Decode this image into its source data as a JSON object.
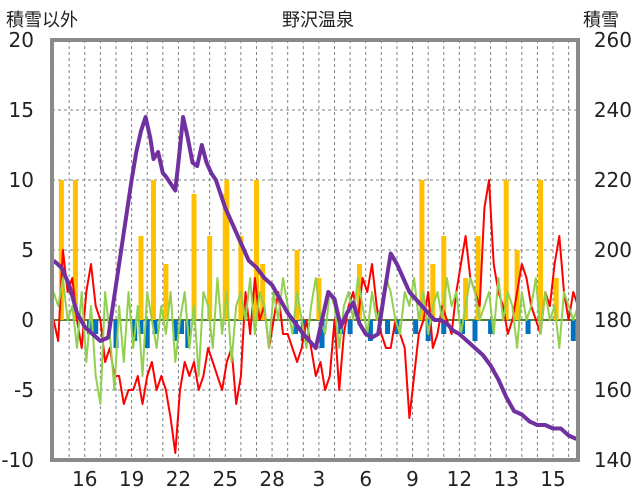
{
  "chart_data": {
    "type": "line",
    "title": "野沢温泉",
    "left_axis_label": "積雪以外",
    "right_axis_label": "積雪",
    "left_ylim": [
      -10,
      20
    ],
    "right_ylim": [
      140,
      260
    ],
    "left_ticks": [
      "20",
      "15",
      "10",
      "5",
      "0",
      "-5",
      "-10"
    ],
    "right_ticks": [
      "260",
      "240",
      "220",
      "200",
      "180",
      "160",
      "140"
    ],
    "x_range": [
      13.9,
      47.6
    ],
    "x_tick_labels": [
      {
        "x": 16,
        "label": "16"
      },
      {
        "x": 19,
        "label": "19"
      },
      {
        "x": 22,
        "label": "22"
      },
      {
        "x": 25,
        "label": "25"
      },
      {
        "x": 28,
        "label": "28"
      },
      {
        "x": 31,
        "label": "3"
      },
      {
        "x": 34,
        "label": "6"
      },
      {
        "x": 37,
        "label": "9"
      },
      {
        "x": 40,
        "label": "12"
      },
      {
        "x": 43,
        "label": "13"
      },
      {
        "x": 46,
        "label": "15"
      }
    ],
    "x_tick_labels_note": "",
    "grid": true,
    "colors": {
      "snow_depth": "#7030a0",
      "temperature": "#ff0000",
      "humidity_like": "#92d050",
      "snowfall": "#ffc000",
      "negative_bars": "#0070c0",
      "zero_line": "#548235"
    },
    "series": [
      {
        "key": "snow_depth",
        "axis": "right",
        "x": [
          14.0,
          14.5,
          15.0,
          15.5,
          16.0,
          16.5,
          17.0,
          17.5,
          18.0,
          18.5,
          19.0,
          19.3,
          19.6,
          19.9,
          20.2,
          20.4,
          20.7,
          21.0,
          21.2,
          21.5,
          21.8,
          22.0,
          22.3,
          22.6,
          22.9,
          23.2,
          23.5,
          23.8,
          24.1,
          24.4,
          24.7,
          25.0,
          25.5,
          26.0,
          26.5,
          27.0,
          27.5,
          28.0,
          28.5,
          29.0,
          29.5,
          30.0,
          30.4,
          30.8,
          31.2,
          31.6,
          32.0,
          32.4,
          32.8,
          33.2,
          33.6,
          34.0,
          34.4,
          34.8,
          35.2,
          35.6,
          36.0,
          36.4,
          36.8,
          37.2,
          37.6,
          38.0,
          38.4,
          38.8,
          39.2,
          39.6,
          40.0,
          40.5,
          41.0,
          41.5,
          42.0,
          42.5,
          43.0,
          43.5,
          44.0,
          44.5,
          45.0,
          45.5,
          46.0,
          46.5,
          47.0,
          47.5
        ],
        "values": [
          197,
          195,
          190,
          182,
          178,
          176,
          174,
          175,
          190,
          205,
          220,
          228,
          234,
          238,
          232,
          226,
          228,
          222,
          221,
          219,
          217,
          225,
          238,
          232,
          225,
          224,
          230,
          225,
          222,
          220,
          216,
          212,
          207,
          202,
          197,
          195,
          192,
          190,
          186,
          182,
          179,
          176,
          174,
          172,
          180,
          188,
          186,
          178,
          182,
          185,
          179,
          176,
          175,
          176,
          188,
          199,
          196,
          192,
          188,
          186,
          184,
          182,
          180,
          180,
          179,
          177,
          176,
          174,
          172,
          170,
          167,
          163,
          158,
          154,
          153,
          151,
          150,
          150,
          149,
          149,
          147,
          146
        ]
      },
      {
        "key": "temperature",
        "axis": "left",
        "x": [
          14.0,
          14.3,
          14.6,
          14.9,
          15.2,
          15.5,
          15.8,
          16.1,
          16.4,
          16.7,
          17.0,
          17.3,
          17.6,
          17.9,
          18.2,
          18.5,
          18.8,
          19.1,
          19.4,
          19.7,
          20.0,
          20.3,
          20.6,
          20.9,
          21.2,
          21.5,
          21.8,
          22.1,
          22.4,
          22.7,
          23.0,
          23.3,
          23.6,
          23.9,
          24.2,
          24.5,
          24.8,
          25.1,
          25.4,
          25.7,
          26.0,
          26.3,
          26.6,
          26.9,
          27.2,
          27.5,
          27.8,
          28.1,
          28.4,
          28.7,
          29.0,
          29.3,
          29.6,
          29.9,
          30.2,
          30.5,
          30.8,
          31.1,
          31.4,
          31.7,
          32.0,
          32.3,
          32.6,
          32.9,
          33.2,
          33.5,
          33.8,
          34.1,
          34.4,
          34.7,
          35.0,
          35.3,
          35.6,
          35.9,
          36.2,
          36.5,
          36.8,
          37.1,
          37.4,
          37.7,
          38.0,
          38.3,
          38.6,
          38.9,
          39.2,
          39.5,
          39.8,
          40.1,
          40.4,
          40.7,
          41.0,
          41.3,
          41.6,
          41.9,
          42.2,
          42.5,
          42.8,
          43.1,
          43.4,
          43.7,
          44.0,
          44.3,
          44.6,
          44.9,
          45.2,
          45.5,
          45.8,
          46.1,
          46.4,
          46.7,
          47.0,
          47.3,
          47.6
        ],
        "values": [
          0,
          -1.5,
          5,
          2,
          3,
          0,
          -2,
          2,
          4,
          1,
          0,
          -3,
          -2,
          -4,
          -4,
          -6,
          -5,
          -5,
          -4,
          -6,
          -4,
          -3,
          -5,
          -4,
          -5,
          -7,
          -9.5,
          -5,
          -3,
          -4,
          -3,
          -5,
          -4,
          -2,
          -3,
          -4,
          -5,
          -3,
          -2,
          -6,
          -4,
          2,
          -1,
          3,
          0,
          1,
          -2,
          0,
          2,
          -1,
          -1,
          -2,
          -3,
          -2,
          0,
          -2,
          -4,
          -3,
          -5,
          -4,
          0,
          -5,
          -1,
          1,
          2,
          0,
          3,
          2,
          4,
          1,
          -1,
          -2,
          -2,
          0,
          -1,
          -2,
          -7,
          -4,
          -1,
          0,
          2,
          -2,
          -1,
          1,
          0,
          -1,
          2,
          4,
          6,
          3,
          2,
          1,
          8,
          10,
          4,
          2,
          1,
          -1,
          0,
          2,
          4,
          3,
          1,
          0,
          -1,
          2,
          1,
          4,
          6,
          2,
          0,
          2,
          1
        ]
      },
      {
        "key": "humidity_like",
        "axis": "left",
        "x": [
          14.0,
          14.3,
          14.6,
          14.9,
          15.2,
          15.5,
          15.8,
          16.1,
          16.4,
          16.7,
          17.0,
          17.3,
          17.6,
          17.9,
          18.2,
          18.5,
          18.8,
          19.1,
          19.4,
          19.7,
          20.0,
          20.3,
          20.6,
          20.9,
          21.2,
          21.5,
          21.8,
          22.1,
          22.4,
          22.7,
          23.0,
          23.3,
          23.6,
          23.9,
          24.2,
          24.5,
          24.8,
          25.1,
          25.4,
          25.7,
          26.0,
          26.3,
          26.6,
          26.9,
          27.2,
          27.5,
          27.8,
          28.1,
          28.4,
          28.7,
          29.0,
          29.3,
          29.6,
          29.9,
          30.2,
          30.5,
          30.8,
          31.1,
          31.4,
          31.7,
          32.0,
          32.3,
          32.6,
          32.9,
          33.2,
          33.5,
          33.8,
          34.1,
          34.4,
          34.7,
          35.0,
          35.3,
          35.6,
          35.9,
          36.2,
          36.5,
          36.8,
          37.1,
          37.4,
          37.7,
          38.0,
          38.3,
          38.6,
          38.9,
          39.2,
          39.5,
          39.8,
          40.1,
          40.4,
          40.7,
          41.0,
          41.3,
          41.6,
          41.9,
          42.2,
          42.5,
          42.8,
          43.1,
          43.4,
          43.7,
          44.0,
          44.3,
          44.6,
          44.9,
          45.2,
          45.5,
          45.8,
          46.1,
          46.4,
          46.7,
          47.0,
          47.3,
          47.6
        ],
        "values": [
          2,
          1,
          3,
          0,
          1,
          -2,
          2,
          -3,
          1,
          -4,
          -6,
          2,
          -1,
          -5,
          1,
          -3,
          2,
          -2,
          1,
          -4,
          2,
          0,
          -2,
          1,
          -1,
          2,
          -3,
          0,
          2,
          -2,
          1,
          -4,
          2,
          1,
          -2,
          3,
          -1,
          2,
          -3,
          1,
          2,
          0,
          3,
          -1,
          2,
          1,
          -2,
          2,
          0,
          3,
          1,
          -1,
          2,
          0,
          -2,
          1,
          3,
          0,
          -1,
          2,
          1,
          -2,
          1,
          2,
          0,
          3,
          1,
          -1,
          2,
          0,
          1,
          3,
          2,
          0,
          -1,
          2,
          1,
          3,
          0,
          2,
          -1,
          1,
          2,
          0,
          3,
          1,
          2,
          -1,
          1,
          3,
          2,
          0,
          1,
          2,
          -1,
          3,
          0,
          2,
          1,
          -2,
          2,
          0,
          1,
          3,
          -1,
          2,
          0,
          1,
          -2,
          2,
          1,
          0,
          1
        ]
      },
      {
        "key": "snowfall",
        "axis": "left",
        "type": "bar",
        "x": [
          14.5,
          15.4,
          19.6,
          20.4,
          21.2,
          23.0,
          24.0,
          25.0,
          25.1,
          26.0,
          27.0,
          27.4,
          29.6,
          31.0,
          33.6,
          37.6,
          38.3,
          39.0,
          40.4,
          41.2,
          43.0,
          43.7,
          45.2,
          46.2
        ],
        "values": [
          10,
          10,
          6,
          10,
          4,
          9,
          6,
          9,
          10,
          6,
          10,
          4,
          5,
          3,
          4,
          10,
          4,
          6,
          3,
          6,
          10,
          5,
          10,
          3
        ]
      },
      {
        "key": "negative_bars",
        "axis": "left",
        "type": "bar",
        "x": [
          16.3,
          16.7,
          18.0,
          19.2,
          19.6,
          20.0,
          20.5,
          21.8,
          22.2,
          22.6,
          29.5,
          30.0,
          31.2,
          32.4,
          33.0,
          34.3,
          35.4,
          36.0,
          37.2,
          38.0,
          39.0,
          40.2,
          41.0,
          42.0,
          44.4,
          47.3
        ],
        "values": [
          -1,
          -1,
          -2,
          -1.5,
          -1,
          -2,
          -1,
          -1.5,
          -1,
          -2,
          -1,
          -1.5,
          -2,
          -1,
          -1,
          -1.5,
          -1,
          -1,
          -1,
          -1.5,
          -1,
          -1,
          -1.5,
          -1,
          -1,
          -1.5
        ]
      }
    ]
  }
}
